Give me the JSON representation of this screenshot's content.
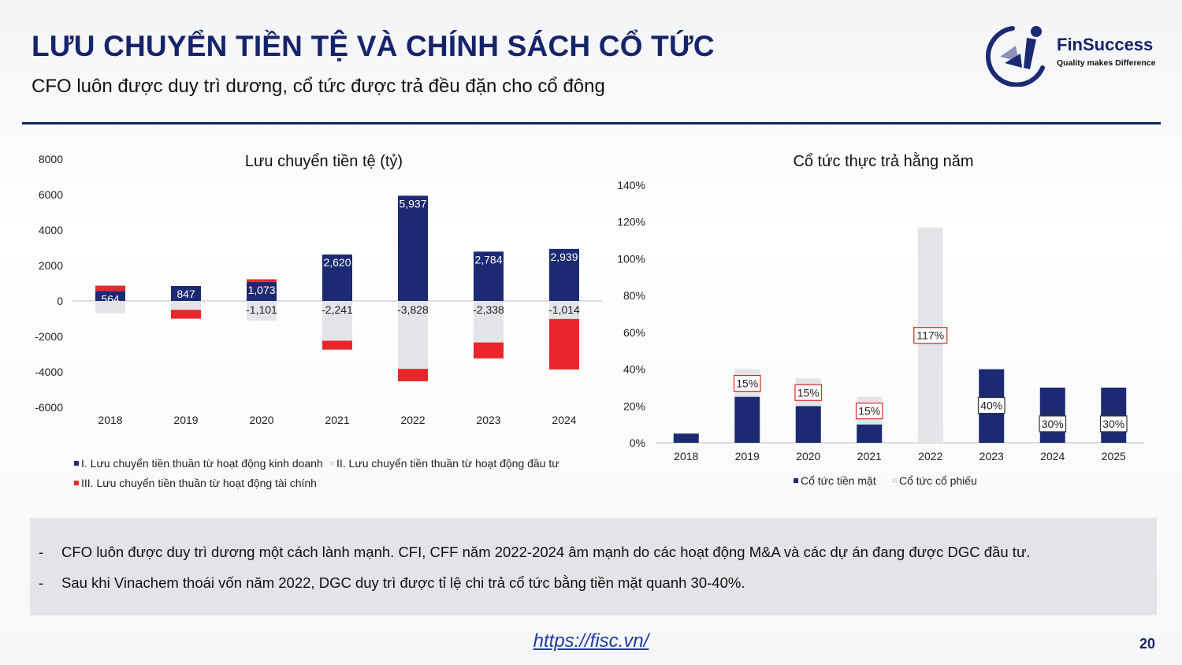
{
  "header": {
    "title": "LƯU CHUYỂN TIỀN TỆ VÀ CHÍNH SÁCH CỔ TỨC",
    "subtitle": "CFO luôn được duy trì dương, cổ tức được trả đều đặn cho cổ đông"
  },
  "logo": {
    "name": "FinSuccess",
    "tagline": "Quality makes Difference"
  },
  "colors": {
    "navy": "#1b2a72",
    "light_gray": "#e4e4e8",
    "red": "#e8262b",
    "title": "#16246a"
  },
  "chart_data": [
    {
      "type": "bar",
      "stacked": true,
      "title": "Lưu chuyển tiền tệ (tỷ)",
      "categories": [
        "2018",
        "2019",
        "2020",
        "2021",
        "2022",
        "2023",
        "2024"
      ],
      "ylim": [
        -6000,
        8000
      ],
      "yticks": [
        "8000",
        "6000",
        "4000",
        "2000",
        "0",
        "-2000",
        "-4000",
        "-6000"
      ],
      "series": [
        {
          "name": "I. Lưu chuyển tiền thuần từ hoạt động kinh doanh",
          "values": [
            564,
            847,
            1073,
            2620,
            5937,
            2784,
            2939
          ],
          "labels": [
            "564",
            "847",
            "1,073",
            "2,620",
            "5,937",
            "2,784",
            "2,939"
          ]
        },
        {
          "name": "II. Lưu chuyển tiền thuần từ hoạt động đầu tư",
          "values": [
            -700,
            -500,
            -1101,
            -2241,
            -3828,
            -2338,
            -1014
          ],
          "labels": [
            "",
            "",
            "-1,101",
            "-2,241",
            "-3,828",
            "-2,338",
            "-1,014"
          ]
        },
        {
          "name": "III. Lưu chuyển tiền thuần từ hoạt động tài chính",
          "values": [
            300,
            -500,
            150,
            -500,
            -700,
            -900,
            -2850
          ],
          "labels": [
            "",
            "",
            "",
            "",
            "",
            "",
            ""
          ]
        }
      ],
      "legend": "bottom"
    },
    {
      "type": "bar",
      "stacked": true,
      "title": "Cổ tức thực trả hằng năm",
      "categories": [
        "2018",
        "2019",
        "2020",
        "2021",
        "2022",
        "2023",
        "2024",
        "2025"
      ],
      "ylim": [
        0,
        140
      ],
      "yticks": [
        "140%",
        "120%",
        "100%",
        "80%",
        "60%",
        "40%",
        "20%",
        "0%"
      ],
      "series": [
        {
          "name": "Cổ tức tiền mặt",
          "values": [
            5,
            25,
            20,
            10,
            0,
            40,
            30,
            30
          ],
          "labels": [
            "",
            "",
            "",
            "",
            "",
            "40%",
            "30%",
            "30%"
          ]
        },
        {
          "name": "Cổ tức cổ phiếu",
          "values": [
            0,
            15,
            15,
            15,
            117,
            0,
            0,
            0
          ],
          "labels": [
            "",
            "15%",
            "15%",
            "15%",
            "117%",
            "",
            "",
            ""
          ]
        }
      ],
      "legend": "bottom"
    }
  ],
  "notes": [
    {
      "bullet": "-",
      "text": "CFO luôn được duy trì dương một cách lành mạnh. CFI, CFF năm 2022-2024 âm mạnh do các hoạt động M&A và các dự án đang được DGC đầu tư."
    },
    {
      "bullet": "-",
      "text": "Sau khi Vinachem thoái vốn năm 2022, DGC duy trì được tỉ lệ chi trả cổ tức bằng tiền mặt quanh 30-40%."
    }
  ],
  "footer": {
    "link": "https://fisc.vn/",
    "page_number": "20"
  }
}
